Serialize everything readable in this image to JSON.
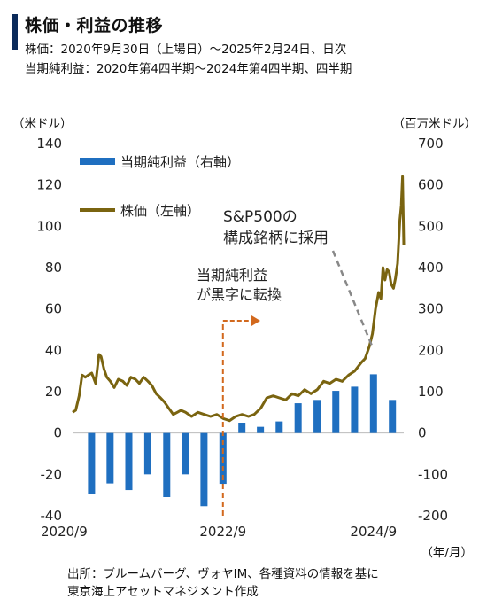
{
  "header": {
    "title": "株価・利益の推移",
    "subtitle_1": "株価：2020年9月30日（上場日）～2025年2月24日、日次",
    "subtitle_2": "当期純利益：2020年第4四半期～2024年第4四半期、四半期"
  },
  "axis_units": {
    "left": "（米ドル）",
    "right": "（百万米ドル）",
    "x": "（年/月）"
  },
  "source": {
    "line_1": "出所：ブルームバーグ、ヴォヤIM、各種資料の情報を基に",
    "line_2": "東京海上アセットマネジメント作成"
  },
  "colors": {
    "price": "#7a6410",
    "income": "#1f6fc0",
    "annotation_arrow": "#d2691e",
    "annotation_dashed": "#888888"
  },
  "chart_data": {
    "type": "bar+line",
    "x_tick_labels": [
      "2020/9",
      "2022/9",
      "2024/9"
    ],
    "left_axis": {
      "label": "（米ドル）",
      "ylim": [
        -40,
        140
      ],
      "ticks": [
        "-40",
        "-20",
        "0",
        "20",
        "40",
        "60",
        "80",
        "100",
        "120",
        "140"
      ]
    },
    "right_axis": {
      "label": "（百万米ドル）",
      "ylim": [
        -200,
        700
      ],
      "ticks": [
        "-200",
        "-100",
        "0",
        "100",
        "200",
        "300",
        "400",
        "500",
        "600",
        "700"
      ]
    },
    "legend": [
      {
        "name": "当期純利益（右軸）",
        "kind": "bar"
      },
      {
        "name": "株価（左軸）",
        "kind": "line"
      }
    ],
    "net_income": {
      "name": "当期純利益（右軸）",
      "axis": "right",
      "quarters": [
        "2020Q4",
        "2021Q1",
        "2021Q2",
        "2021Q3",
        "2021Q4",
        "2022Q1",
        "2022Q2",
        "2022Q3",
        "2022Q4",
        "2023Q1",
        "2023Q2",
        "2023Q3",
        "2023Q4",
        "2024Q1",
        "2024Q2",
        "2024Q3",
        "2024Q4"
      ],
      "values": [
        -148,
        -122,
        -138,
        -100,
        -155,
        -100,
        -177,
        -123,
        25,
        15,
        28,
        72,
        80,
        102,
        112,
        142,
        80
      ]
    },
    "stock_price": {
      "name": "株価（左軸）",
      "axis": "left",
      "points": [
        [
          "2020-09-30",
          10
        ],
        [
          "2020-10-15",
          11
        ],
        [
          "2020-11-01",
          18
        ],
        [
          "2020-11-15",
          28
        ],
        [
          "2020-12-01",
          27
        ],
        [
          "2020-12-15",
          28
        ],
        [
          "2021-01-01",
          29
        ],
        [
          "2021-01-20",
          24
        ],
        [
          "2021-02-05",
          38
        ],
        [
          "2021-02-15",
          37
        ],
        [
          "2021-03-01",
          31
        ],
        [
          "2021-03-15",
          27
        ],
        [
          "2021-04-01",
          25
        ],
        [
          "2021-04-20",
          22
        ],
        [
          "2021-05-10",
          26
        ],
        [
          "2021-06-01",
          25
        ],
        [
          "2021-06-20",
          23
        ],
        [
          "2021-07-10",
          27
        ],
        [
          "2021-08-01",
          26
        ],
        [
          "2021-08-20",
          24
        ],
        [
          "2021-09-10",
          27
        ],
        [
          "2021-10-01",
          25
        ],
        [
          "2021-10-20",
          23
        ],
        [
          "2021-11-10",
          19
        ],
        [
          "2021-12-01",
          17
        ],
        [
          "2021-12-20",
          15
        ],
        [
          "2022-01-10",
          12
        ],
        [
          "2022-02-01",
          9
        ],
        [
          "2022-02-20",
          10
        ],
        [
          "2022-03-10",
          11
        ],
        [
          "2022-04-01",
          10
        ],
        [
          "2022-05-01",
          8
        ],
        [
          "2022-06-01",
          10
        ],
        [
          "2022-07-01",
          9
        ],
        [
          "2022-08-01",
          8
        ],
        [
          "2022-09-01",
          9
        ],
        [
          "2022-10-01",
          7
        ],
        [
          "2022-11-01",
          6
        ],
        [
          "2022-12-01",
          8
        ],
        [
          "2023-01-01",
          9
        ],
        [
          "2023-02-01",
          8
        ],
        [
          "2023-03-01",
          9
        ],
        [
          "2023-04-01",
          12
        ],
        [
          "2023-05-01",
          17
        ],
        [
          "2023-06-01",
          18
        ],
        [
          "2023-07-01",
          17
        ],
        [
          "2023-08-01",
          16
        ],
        [
          "2023-09-01",
          19
        ],
        [
          "2023-10-01",
          18
        ],
        [
          "2023-11-01",
          21
        ],
        [
          "2023-12-01",
          19
        ],
        [
          "2024-01-01",
          21
        ],
        [
          "2024-02-01",
          25
        ],
        [
          "2024-03-01",
          24
        ],
        [
          "2024-04-01",
          26
        ],
        [
          "2024-05-01",
          25
        ],
        [
          "2024-06-01",
          28
        ],
        [
          "2024-07-01",
          30
        ],
        [
          "2024-08-01",
          34
        ],
        [
          "2024-08-20",
          36
        ],
        [
          "2024-09-10",
          42
        ],
        [
          "2024-09-25",
          48
        ],
        [
          "2024-10-10",
          60
        ],
        [
          "2024-10-25",
          68
        ],
        [
          "2024-11-05",
          65
        ],
        [
          "2024-11-15",
          80
        ],
        [
          "2024-11-25",
          74
        ],
        [
          "2024-12-05",
          79
        ],
        [
          "2024-12-15",
          78
        ],
        [
          "2024-12-25",
          72
        ],
        [
          "2025-01-05",
          70
        ],
        [
          "2025-01-15",
          75
        ],
        [
          "2025-01-25",
          82
        ],
        [
          "2025-02-05",
          103
        ],
        [
          "2025-02-12",
          110
        ],
        [
          "2025-02-18",
          124
        ],
        [
          "2025-02-22",
          103
        ],
        [
          "2025-02-24",
          91
        ]
      ]
    },
    "annotations": [
      {
        "text": "当期純利益\nが黒字に転換",
        "date": "2022-09-30",
        "kind": "dashed-vertical-arrow"
      },
      {
        "text": "S&P500の\n構成銘柄に採用",
        "date": "2024-09-23",
        "kind": "dashed-pointer"
      }
    ]
  }
}
